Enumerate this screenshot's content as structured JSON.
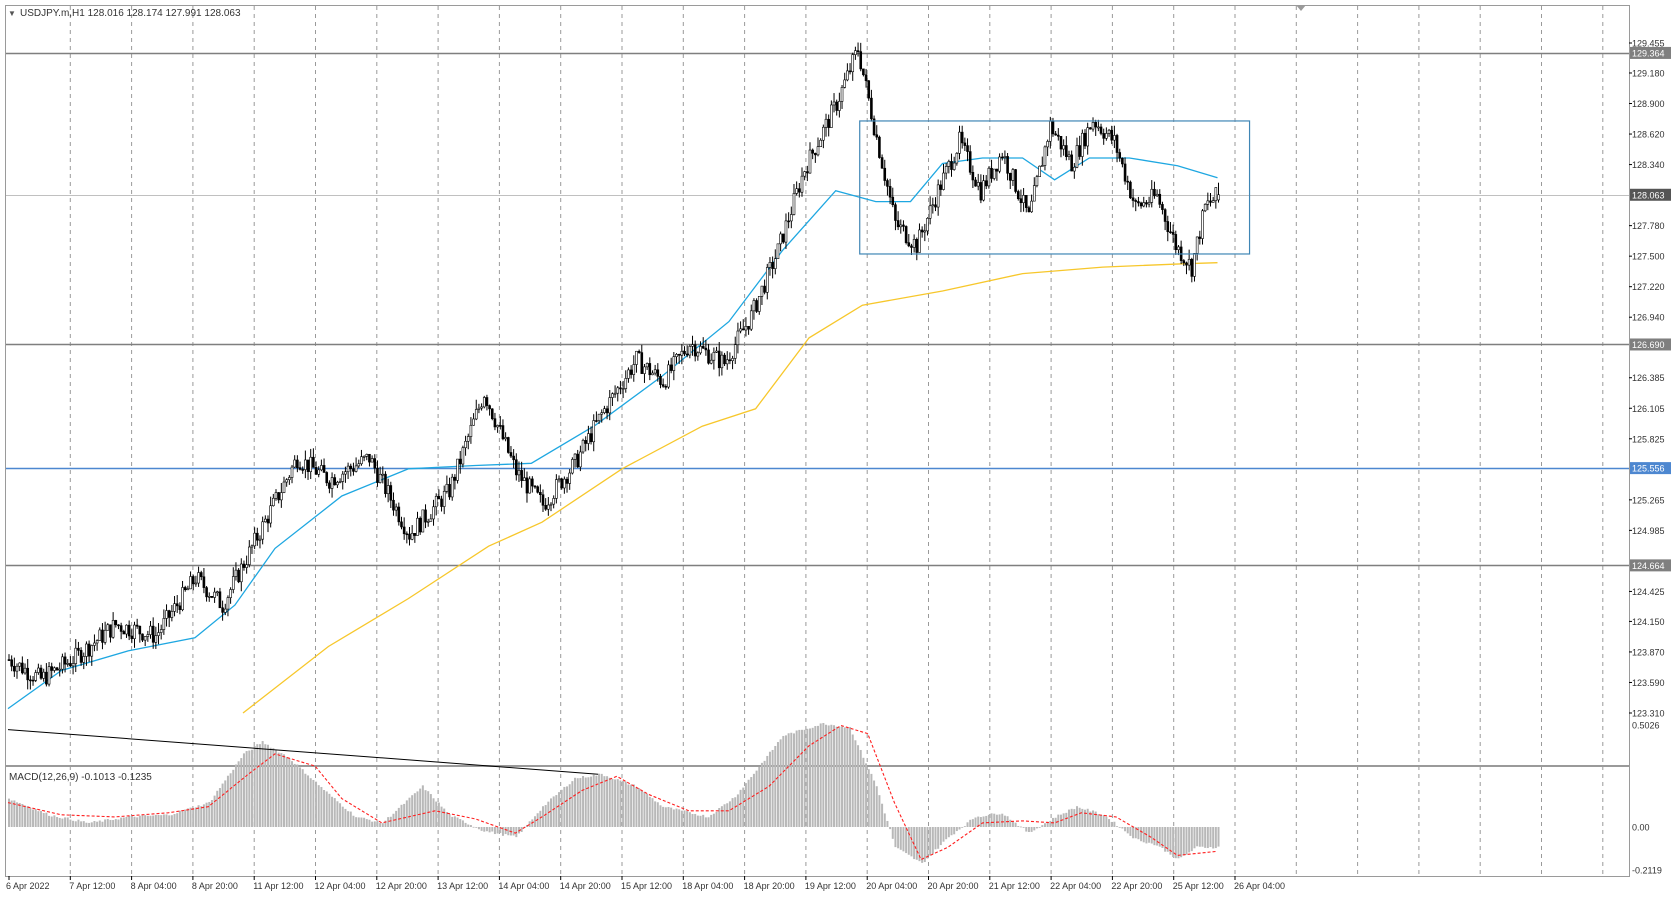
{
  "header": {
    "caret": "▼",
    "text": "USDJPY.m,H1  128.016 128.174 127.991 128.063"
  },
  "colors": {
    "background": "#ffffff",
    "candle_bull": "#ffffff",
    "candle_bear": "#000000",
    "grid": "#9a9a9a",
    "ma_fast": "#1ea7e1",
    "ma_slow": "#f7c72b",
    "level_line": "#7f7f7f",
    "support_line": "#4d87d0",
    "range_box": "#3f86b5",
    "macd_hist": "#b8b8b8",
    "macd_signal": "#ff1f1f",
    "trendline": "#000000",
    "price_tag": "#7f7f7f"
  },
  "chart_data": [
    {
      "type": "candlestick",
      "symbol": "USDJPY.m",
      "timeframe": "H1",
      "ohlc_current": {
        "open": 128.016,
        "high": 128.174,
        "low": 127.991,
        "close": 128.063
      },
      "ylim": [
        123.31,
        129.455
      ],
      "y_ticks": [
        "129.455",
        "129.180",
        "128.900",
        "128.620",
        "128.340",
        "128.063",
        "127.780",
        "127.500",
        "127.220",
        "126.940",
        "126.690",
        "126.385",
        "126.105",
        "125.825",
        "125.556",
        "125.265",
        "124.985",
        "124.664",
        "124.425",
        "124.150",
        "123.870",
        "123.590",
        "123.310"
      ],
      "x_ticks": [
        "6 Apr 2022",
        "7 Apr 12:00",
        "8 Apr 04:00",
        "8 Apr 20:00",
        "11 Apr 12:00",
        "12 Apr 04:00",
        "12 Apr 20:00",
        "13 Apr 12:00",
        "14 Apr 04:00",
        "14 Apr 20:00",
        "15 Apr 12:00",
        "18 Apr 04:00",
        "18 Apr 20:00",
        "19 Apr 12:00",
        "20 Apr 04:00",
        "20 Apr 20:00",
        "21 Apr 12:00",
        "22 Apr 04:00",
        "22 Apr 20:00",
        "25 Apr 12:00",
        "26 Apr 04:00"
      ],
      "price_path": [
        [
          0,
          123.8
        ],
        [
          12,
          123.62
        ],
        [
          25,
          123.82
        ],
        [
          40,
          124.12
        ],
        [
          55,
          124.02
        ],
        [
          70,
          124.55
        ],
        [
          80,
          124.3
        ],
        [
          95,
          125.02
        ],
        [
          108,
          125.65
        ],
        [
          120,
          125.45
        ],
        [
          135,
          125.65
        ],
        [
          150,
          124.95
        ],
        [
          165,
          125.35
        ],
        [
          178,
          126.25
        ],
        [
          190,
          125.52
        ],
        [
          200,
          125.22
        ],
        [
          212,
          125.6
        ],
        [
          222,
          126.05
        ],
        [
          235,
          126.55
        ],
        [
          245,
          126.35
        ],
        [
          255,
          126.7
        ],
        [
          268,
          126.52
        ],
        [
          278,
          126.95
        ],
        [
          288,
          127.55
        ],
        [
          298,
          128.3
        ],
        [
          310,
          128.9
        ],
        [
          318,
          129.4
        ],
        [
          324,
          128.7
        ],
        [
          332,
          127.8
        ],
        [
          340,
          127.6
        ],
        [
          348,
          128.1
        ],
        [
          356,
          128.55
        ],
        [
          364,
          128.1
        ],
        [
          372,
          128.45
        ],
        [
          382,
          127.85
        ],
        [
          390,
          128.7
        ],
        [
          398,
          128.35
        ],
        [
          406,
          128.75
        ],
        [
          414,
          128.55
        ],
        [
          422,
          127.95
        ],
        [
          430,
          128.05
        ],
        [
          437,
          127.6
        ],
        [
          443,
          127.4
        ],
        [
          448,
          127.95
        ],
        [
          453,
          128.063
        ]
      ],
      "hlines": [
        129.364,
        128.063,
        126.69,
        125.556,
        124.664
      ],
      "price_tags": [
        "129.364",
        "128.063",
        "126.690",
        "125.556",
        "124.664"
      ],
      "ma_fast": [
        [
          0,
          123.35
        ],
        [
          20,
          123.7
        ],
        [
          45,
          123.88
        ],
        [
          70,
          124.0
        ],
        [
          85,
          124.3
        ],
        [
          100,
          124.82
        ],
        [
          125,
          125.3
        ],
        [
          150,
          125.55
        ],
        [
          175,
          125.58
        ],
        [
          196,
          125.6
        ],
        [
          220,
          125.95
        ],
        [
          245,
          126.4
        ],
        [
          270,
          126.9
        ],
        [
          290,
          127.55
        ],
        [
          310,
          128.1
        ],
        [
          325,
          128.0
        ],
        [
          338,
          128.0
        ],
        [
          350,
          128.35
        ],
        [
          365,
          128.4
        ],
        [
          380,
          128.4
        ],
        [
          392,
          128.2
        ],
        [
          405,
          128.4
        ],
        [
          420,
          128.4
        ],
        [
          438,
          128.33
        ],
        [
          453,
          128.22
        ]
      ],
      "ma_slow": [
        [
          88,
          123.31
        ],
        [
          120,
          123.92
        ],
        [
          150,
          124.36
        ],
        [
          180,
          124.84
        ],
        [
          200,
          125.06
        ],
        [
          230,
          125.55
        ],
        [
          260,
          125.94
        ],
        [
          280,
          126.1
        ],
        [
          300,
          126.75
        ],
        [
          320,
          127.05
        ],
        [
          350,
          127.18
        ],
        [
          380,
          127.34
        ],
        [
          410,
          127.4
        ],
        [
          440,
          127.43
        ],
        [
          453,
          127.44
        ]
      ],
      "range_box": {
        "x0": 319,
        "x1": 465,
        "y_top": 128.74,
        "y_bottom": 127.52
      }
    },
    {
      "type": "bar",
      "title": "MACD(12,26,9) -0.1013 -0.1235",
      "ylim": [
        -0.2119,
        0.5026
      ],
      "y_ticks": [
        "0.5026",
        "0.00",
        "-0.2119"
      ],
      "macd_path": [
        [
          0,
          0.14
        ],
        [
          15,
          0.06
        ],
        [
          30,
          0.02
        ],
        [
          45,
          0.05
        ],
        [
          60,
          0.06
        ],
        [
          75,
          0.12
        ],
        [
          88,
          0.36
        ],
        [
          95,
          0.42
        ],
        [
          105,
          0.34
        ],
        [
          120,
          0.16
        ],
        [
          130,
          0.05
        ],
        [
          140,
          0.02
        ],
        [
          155,
          0.2
        ],
        [
          165,
          0.06
        ],
        [
          178,
          -0.02
        ],
        [
          190,
          -0.05
        ],
        [
          200,
          0.1
        ],
        [
          212,
          0.24
        ],
        [
          222,
          0.26
        ],
        [
          235,
          0.2
        ],
        [
          245,
          0.1
        ],
        [
          262,
          0.05
        ],
        [
          272,
          0.15
        ],
        [
          280,
          0.28
        ],
        [
          290,
          0.45
        ],
        [
          305,
          0.51
        ],
        [
          315,
          0.49
        ],
        [
          325,
          0.2
        ],
        [
          332,
          -0.1
        ],
        [
          342,
          -0.18
        ],
        [
          352,
          -0.05
        ],
        [
          362,
          0.05
        ],
        [
          372,
          0.07
        ],
        [
          382,
          -0.03
        ],
        [
          392,
          0.05
        ],
        [
          400,
          0.1
        ],
        [
          410,
          0.06
        ],
        [
          422,
          -0.06
        ],
        [
          430,
          -0.09
        ],
        [
          438,
          -0.16
        ],
        [
          445,
          -0.1
        ],
        [
          453,
          -0.1
        ]
      ],
      "signal_path": [
        [
          0,
          0.12
        ],
        [
          20,
          0.06
        ],
        [
          40,
          0.05
        ],
        [
          60,
          0.07
        ],
        [
          75,
          0.1
        ],
        [
          90,
          0.26
        ],
        [
          100,
          0.36
        ],
        [
          115,
          0.3
        ],
        [
          125,
          0.14
        ],
        [
          140,
          0.02
        ],
        [
          160,
          0.08
        ],
        [
          175,
          0.04
        ],
        [
          190,
          -0.03
        ],
        [
          200,
          0.05
        ],
        [
          215,
          0.18
        ],
        [
          228,
          0.25
        ],
        [
          240,
          0.16
        ],
        [
          255,
          0.08
        ],
        [
          270,
          0.08
        ],
        [
          285,
          0.2
        ],
        [
          300,
          0.4
        ],
        [
          312,
          0.5
        ],
        [
          322,
          0.46
        ],
        [
          332,
          0.12
        ],
        [
          342,
          -0.16
        ],
        [
          352,
          -0.1
        ],
        [
          365,
          0.02
        ],
        [
          380,
          0.03
        ],
        [
          392,
          0.02
        ],
        [
          402,
          0.07
        ],
        [
          415,
          0.05
        ],
        [
          428,
          -0.05
        ],
        [
          438,
          -0.14
        ],
        [
          453,
          -0.12
        ]
      ],
      "trendline": [
        [
          0,
          0.48
        ],
        [
          221,
          0.26
        ]
      ]
    }
  ]
}
